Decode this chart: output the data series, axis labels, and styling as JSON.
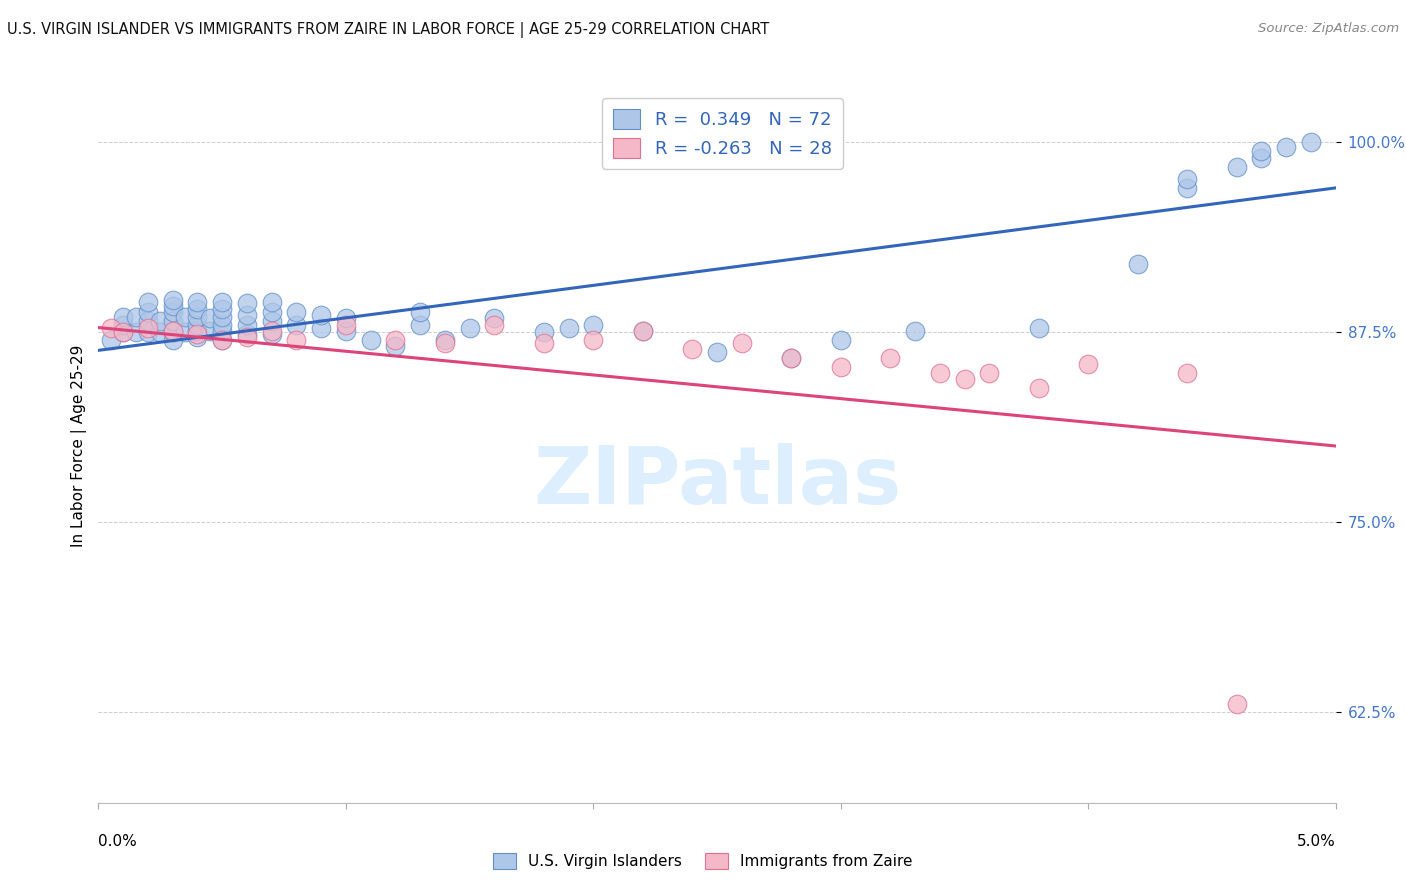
{
  "title": "U.S. VIRGIN ISLANDER VS IMMIGRANTS FROM ZAIRE IN LABOR FORCE | AGE 25-29 CORRELATION CHART",
  "source": "Source: ZipAtlas.com",
  "ylabel": "In Labor Force | Age 25-29",
  "x_min": 0.0,
  "x_max": 0.05,
  "y_min": 0.565,
  "y_max": 1.035,
  "x_ticks": [
    0.0,
    0.01,
    0.02,
    0.03,
    0.04,
    0.05
  ],
  "x_tick_labels": [
    "0.0%",
    "",
    "",
    "",
    "",
    "5.0%"
  ],
  "y_ticks": [
    0.625,
    0.75,
    0.875,
    1.0
  ],
  "y_tick_labels": [
    "62.5%",
    "75.0%",
    "87.5%",
    "100.0%"
  ],
  "blue_R": 0.349,
  "blue_N": 72,
  "pink_R": -0.263,
  "pink_N": 28,
  "blue_color": "#aec6e8",
  "pink_color": "#f5b8c8",
  "blue_edge_color": "#6090c8",
  "pink_edge_color": "#e07090",
  "blue_line_color": "#3366bb",
  "pink_line_color": "#dd4477",
  "tick_color": "#4477cc",
  "watermark_color": "#ddeeff",
  "blue_scatter_x": [
    0.0005,
    0.001,
    0.001,
    0.001,
    0.0015,
    0.0015,
    0.002,
    0.002,
    0.002,
    0.002,
    0.0025,
    0.0025,
    0.003,
    0.003,
    0.003,
    0.003,
    0.003,
    0.003,
    0.0035,
    0.0035,
    0.004,
    0.004,
    0.004,
    0.004,
    0.004,
    0.004,
    0.0045,
    0.0045,
    0.005,
    0.005,
    0.005,
    0.005,
    0.005,
    0.005,
    0.006,
    0.006,
    0.006,
    0.006,
    0.007,
    0.007,
    0.007,
    0.007,
    0.008,
    0.008,
    0.009,
    0.009,
    0.01,
    0.01,
    0.011,
    0.012,
    0.013,
    0.013,
    0.014,
    0.015,
    0.016,
    0.018,
    0.019,
    0.02,
    0.022,
    0.025,
    0.028,
    0.03,
    0.033,
    0.038,
    0.042,
    0.044,
    0.044,
    0.046,
    0.047,
    0.047,
    0.048,
    0.049
  ],
  "blue_scatter_y": [
    0.87,
    0.875,
    0.88,
    0.885,
    0.875,
    0.885,
    0.875,
    0.882,
    0.888,
    0.895,
    0.875,
    0.882,
    0.87,
    0.875,
    0.882,
    0.888,
    0.892,
    0.896,
    0.875,
    0.885,
    0.872,
    0.876,
    0.88,
    0.885,
    0.89,
    0.895,
    0.876,
    0.884,
    0.87,
    0.876,
    0.88,
    0.885,
    0.89,
    0.895,
    0.874,
    0.88,
    0.886,
    0.894,
    0.874,
    0.882,
    0.888,
    0.895,
    0.88,
    0.888,
    0.878,
    0.886,
    0.876,
    0.884,
    0.87,
    0.866,
    0.88,
    0.888,
    0.87,
    0.878,
    0.884,
    0.875,
    0.878,
    0.88,
    0.876,
    0.862,
    0.858,
    0.87,
    0.876,
    0.878,
    0.92,
    0.97,
    0.976,
    0.984,
    0.99,
    0.994,
    0.997,
    1.0
  ],
  "pink_scatter_x": [
    0.0005,
    0.001,
    0.002,
    0.003,
    0.004,
    0.005,
    0.006,
    0.007,
    0.008,
    0.01,
    0.012,
    0.014,
    0.016,
    0.018,
    0.02,
    0.022,
    0.024,
    0.026,
    0.028,
    0.03,
    0.032,
    0.034,
    0.035,
    0.036,
    0.038,
    0.04,
    0.044,
    0.046
  ],
  "pink_scatter_y": [
    0.878,
    0.875,
    0.878,
    0.876,
    0.874,
    0.87,
    0.872,
    0.876,
    0.87,
    0.88,
    0.87,
    0.868,
    0.88,
    0.868,
    0.87,
    0.876,
    0.864,
    0.868,
    0.858,
    0.852,
    0.858,
    0.848,
    0.844,
    0.848,
    0.838,
    0.854,
    0.848,
    0.63
  ],
  "blue_trend_x0": 0.0,
  "blue_trend_x1": 0.05,
  "blue_trend_y0": 0.863,
  "blue_trend_y1": 0.97,
  "pink_trend_x0": 0.0,
  "pink_trend_x1": 0.05,
  "pink_trend_y0": 0.878,
  "pink_trend_y1": 0.8
}
